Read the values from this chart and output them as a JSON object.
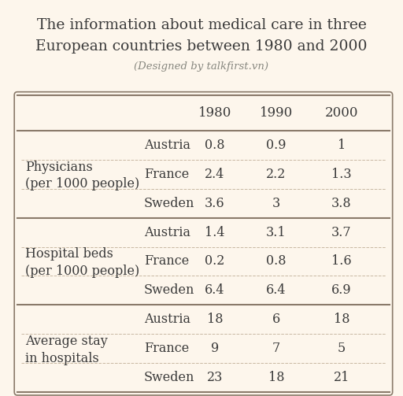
{
  "title_line1": "The information about medical care in three",
  "title_line2": "European countries between 1980 and 2000",
  "subtitle": "(Designed by talkfirst.vn)",
  "bg_color": "#fdf6ec",
  "table_bg": "#fdf6ec",
  "header_years": [
    "1980",
    "1990",
    "2000"
  ],
  "sections": [
    {
      "label_line1": "Physicians",
      "label_line2": "(per 1000 people)",
      "rows": [
        {
          "country": "Austria",
          "values": [
            "0.8",
            "0.9",
            "1"
          ]
        },
        {
          "country": "France",
          "values": [
            "2.4",
            "2.2",
            "1.3"
          ]
        },
        {
          "country": "Sweden",
          "values": [
            "3.6",
            "3",
            "3.8"
          ]
        }
      ]
    },
    {
      "label_line1": "Hospital beds",
      "label_line2": "(per 1000 people)",
      "rows": [
        {
          "country": "Austria",
          "values": [
            "1.4",
            "3.1",
            "3.7"
          ]
        },
        {
          "country": "France",
          "values": [
            "0.2",
            "0.8",
            "1.6"
          ]
        },
        {
          "country": "Sweden",
          "values": [
            "6.4",
            "6.4",
            "6.9"
          ]
        }
      ]
    },
    {
      "label_line1": "Average stay",
      "label_line2": "in hospitals",
      "rows": [
        {
          "country": "Austria",
          "values": [
            "18",
            "6",
            "18"
          ]
        },
        {
          "country": "France",
          "values": [
            "9",
            "7",
            "5"
          ]
        },
        {
          "country": "Sweden",
          "values": [
            "23",
            "18",
            "21"
          ]
        }
      ]
    }
  ],
  "title_fontsize": 13.5,
  "subtitle_fontsize": 9.5,
  "header_fontsize": 12,
  "cell_fontsize": 11.5,
  "label_fontsize": 11.5,
  "country_fontsize": 11.5,
  "text_color": "#3a3a3a",
  "thin_line_color": "#c8b8a2",
  "thick_line_color": "#8a7a6a",
  "subtitle_color": "#888880"
}
